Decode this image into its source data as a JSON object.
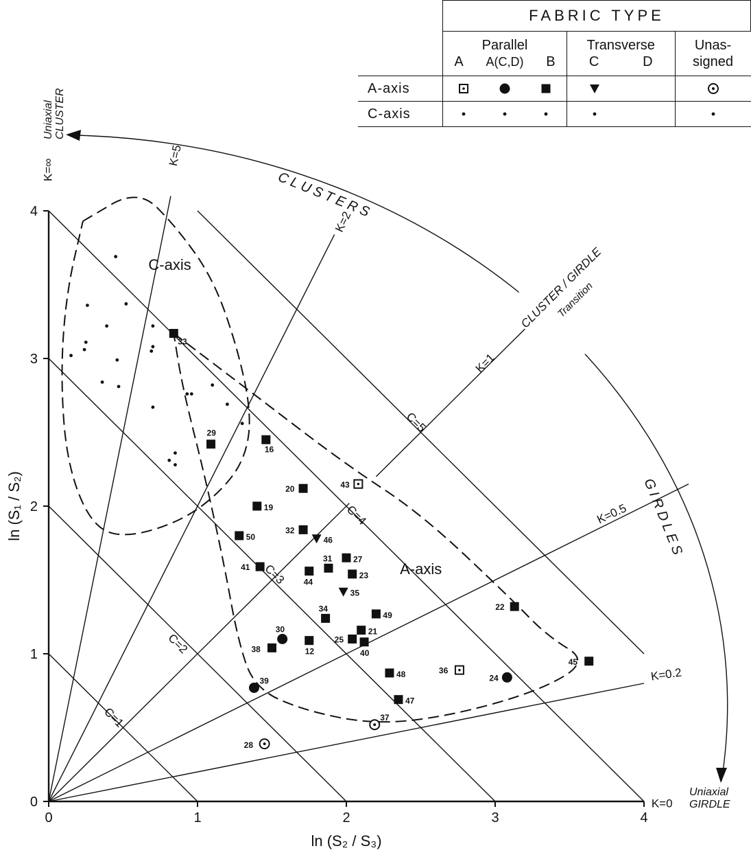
{
  "legend": {
    "title": "FABRIC TYPE",
    "groups": {
      "parallel": "Parallel",
      "transverse": "Transverse",
      "unassigned": "Unas-\nsigned"
    },
    "subtypes": {
      "parallel_a": "A",
      "parallel_acd": "A(C,D)",
      "parallel_b": "B",
      "transverse_c": "C",
      "transverse_d": "D"
    },
    "rows": {
      "a_axis": "A-axis",
      "c_axis": "C-axis"
    },
    "symbols": {
      "parallel_a": "dotted-square",
      "parallel_acd": "filled-circle",
      "parallel_b": "filled-square",
      "transverse_c": "filled-triangle-down",
      "unassigned": "dotted-circle",
      "c_axis": "small-dot"
    }
  },
  "chart_data": {
    "type": "scatter",
    "xlabel": "ln (S₂ / S₃)",
    "ylabel": "ln (S₁ / S₂)",
    "xlim": [
      0,
      4
    ],
    "ylim": [
      0,
      4
    ],
    "xticks": [
      "0",
      "1",
      "2",
      "3",
      "4"
    ],
    "yticks": [
      "0",
      "1",
      "2",
      "3",
      "4"
    ],
    "grid": false,
    "legend_position": "top-right",
    "k_lines": [
      {
        "label": "K=∞",
        "k": null
      },
      {
        "label": "K=5",
        "k": 5
      },
      {
        "label": "K=2",
        "k": 2
      },
      {
        "label": "K=1",
        "k": 1
      },
      {
        "label": "K=0.5",
        "k": 0.5
      },
      {
        "label": "K=0.2",
        "k": 0.2
      },
      {
        "label": "K=0",
        "k": 0
      }
    ],
    "c_lines": [
      {
        "label": "C=1",
        "c": 1
      },
      {
        "label": "C=2",
        "c": 2
      },
      {
        "label": "C=3",
        "c": 3
      },
      {
        "label": "C=4",
        "c": 4
      },
      {
        "label": "C=5",
        "c": 5
      }
    ],
    "annotations": {
      "clusters": "CLUSTERS",
      "girdles": "GIRDLES",
      "transition_line1": "CLUSTER / GIRDLE",
      "transition_line2": "Transition",
      "uniaxial_cluster_1": "Uniaxial",
      "uniaxial_cluster_2": "CLUSTER",
      "uniaxial_girdle_1": "Uniaxial",
      "uniaxial_girdle_2": "GIRDLE",
      "c_axis_region": "C-axis",
      "a_axis_region": "A-axis"
    },
    "series": [
      {
        "name": "Parallel B",
        "marker": "filled-square",
        "points": [
          {
            "id": "33",
            "x": 0.84,
            "y": 3.17
          },
          {
            "id": "29",
            "x": 1.09,
            "y": 2.42
          },
          {
            "id": "16",
            "x": 1.46,
            "y": 2.45
          },
          {
            "id": "20",
            "x": 1.71,
            "y": 2.12
          },
          {
            "id": "19",
            "x": 1.4,
            "y": 2.0
          },
          {
            "id": "32",
            "x": 1.71,
            "y": 1.84
          },
          {
            "id": "50",
            "x": 1.28,
            "y": 1.8
          },
          {
            "id": "41",
            "x": 1.42,
            "y": 1.59
          },
          {
            "id": "31",
            "x": 1.88,
            "y": 1.58
          },
          {
            "id": "27",
            "x": 2.0,
            "y": 1.65
          },
          {
            "id": "23",
            "x": 2.04,
            "y": 1.54
          },
          {
            "id": "44",
            "x": 1.75,
            "y": 1.56
          },
          {
            "id": "34",
            "x": 1.86,
            "y": 1.24
          },
          {
            "id": "49",
            "x": 2.2,
            "y": 1.27
          },
          {
            "id": "21",
            "x": 2.1,
            "y": 1.16
          },
          {
            "id": "25",
            "x": 2.04,
            "y": 1.1
          },
          {
            "id": "40",
            "x": 2.12,
            "y": 1.08
          },
          {
            "id": "12",
            "x": 1.75,
            "y": 1.09
          },
          {
            "id": "38",
            "x": 1.5,
            "y": 1.04
          },
          {
            "id": "22",
            "x": 3.13,
            "y": 1.32
          },
          {
            "id": "45",
            "x": 3.63,
            "y": 0.95
          },
          {
            "id": "48",
            "x": 2.29,
            "y": 0.87
          },
          {
            "id": "47",
            "x": 2.35,
            "y": 0.69
          }
        ]
      },
      {
        "name": "Parallel A(C,D)",
        "marker": "filled-circle",
        "points": [
          {
            "id": "30",
            "x": 1.57,
            "y": 1.1
          },
          {
            "id": "39",
            "x": 1.38,
            "y": 0.77
          },
          {
            "id": "24",
            "x": 3.08,
            "y": 0.84
          }
        ]
      },
      {
        "name": "Transverse C",
        "marker": "filled-triangle-down",
        "points": [
          {
            "id": "46",
            "x": 1.8,
            "y": 1.78
          },
          {
            "id": "35",
            "x": 1.98,
            "y": 1.42
          }
        ]
      },
      {
        "name": "Parallel A",
        "marker": "dotted-square",
        "points": [
          {
            "id": "43",
            "x": 2.08,
            "y": 2.15
          },
          {
            "id": "36",
            "x": 2.76,
            "y": 0.89
          }
        ]
      },
      {
        "name": "Unassigned",
        "marker": "dotted-circle",
        "points": [
          {
            "id": "37",
            "x": 2.19,
            "y": 0.52
          },
          {
            "id": "28",
            "x": 1.45,
            "y": 0.39
          }
        ]
      },
      {
        "name": "C-axis",
        "marker": "small-dot",
        "points": [
          {
            "x": 0.45,
            "y": 3.69
          },
          {
            "x": 0.26,
            "y": 3.36
          },
          {
            "x": 0.52,
            "y": 3.37
          },
          {
            "x": 0.39,
            "y": 3.22
          },
          {
            "x": 0.7,
            "y": 3.22
          },
          {
            "x": 0.25,
            "y": 3.11
          },
          {
            "x": 0.24,
            "y": 3.06
          },
          {
            "x": 0.7,
            "y": 3.08
          },
          {
            "x": 0.69,
            "y": 3.05
          },
          {
            "x": 0.15,
            "y": 3.02
          },
          {
            "x": 0.46,
            "y": 2.99
          },
          {
            "x": 1.1,
            "y": 2.82
          },
          {
            "x": 0.36,
            "y": 2.84
          },
          {
            "x": 0.47,
            "y": 2.81
          },
          {
            "x": 0.93,
            "y": 2.76
          },
          {
            "x": 0.96,
            "y": 2.76
          },
          {
            "x": 1.2,
            "y": 2.69
          },
          {
            "x": 0.7,
            "y": 2.67
          },
          {
            "x": 0.81,
            "y": 2.31
          },
          {
            "x": 0.85,
            "y": 2.36
          },
          {
            "x": 0.85,
            "y": 2.28
          },
          {
            "x": 1.3,
            "y": 2.56
          }
        ]
      }
    ],
    "envelopes": [
      {
        "name": "C-axis envelope"
      },
      {
        "name": "A-axis envelope"
      }
    ]
  }
}
